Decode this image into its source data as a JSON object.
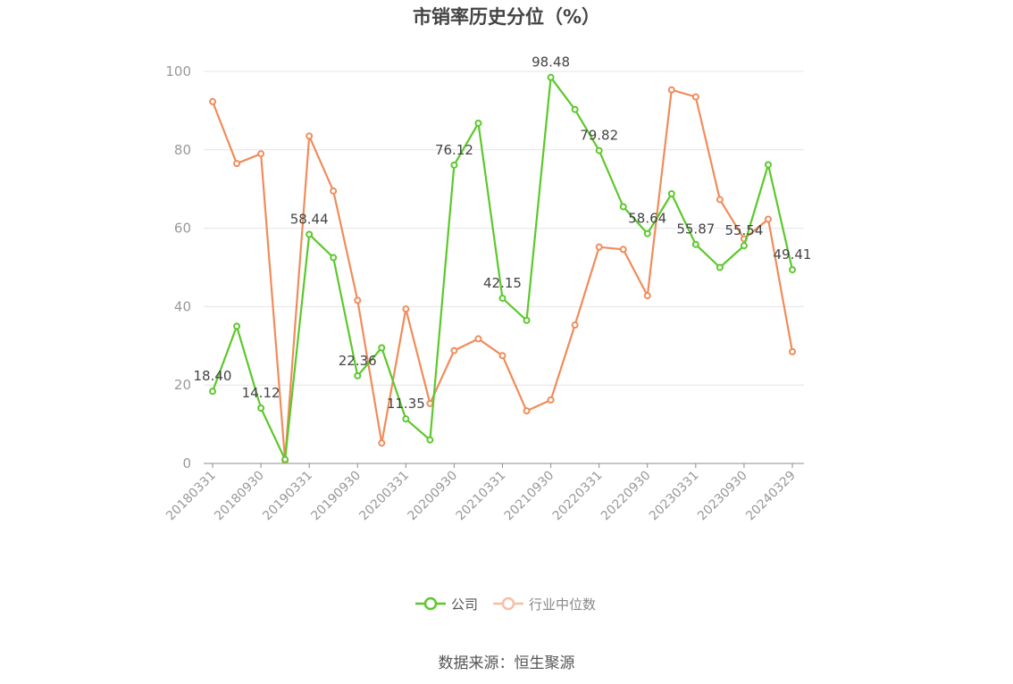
{
  "chart_data": {
    "type": "line",
    "title": "市销率历史分位（%）",
    "xlabel": "",
    "ylabel": "",
    "ylim": [
      0,
      100
    ],
    "yticks": [
      0,
      20,
      40,
      60,
      80,
      100
    ],
    "grid": true,
    "legend_position": "bottom",
    "categories": [
      "20180331",
      "20180630",
      "20180930",
      "20181231",
      "20190331",
      "20190630",
      "20190930",
      "20191231",
      "20200331",
      "20200630",
      "20200930",
      "20201231",
      "20210331",
      "20210630",
      "20210930",
      "20211231",
      "20220331",
      "20220630",
      "20220930",
      "20221231",
      "20230331",
      "20230630",
      "20230930",
      "20231231",
      "20240329"
    ],
    "xtick_labels": [
      "20180331",
      "20180930",
      "20190331",
      "20190930",
      "20200331",
      "20200930",
      "20210331",
      "20210930",
      "20220331",
      "20220930",
      "20230331",
      "20230930",
      "20240329"
    ],
    "series": [
      {
        "name": "公司",
        "color": "#5cc82b",
        "values": [
          18.4,
          35.0,
          14.12,
          1.0,
          58.44,
          52.5,
          22.36,
          29.5,
          11.35,
          6.0,
          76.12,
          86.8,
          42.15,
          36.5,
          98.48,
          90.3,
          79.82,
          65.5,
          58.64,
          68.8,
          55.87,
          50.0,
          55.54,
          76.2,
          49.41
        ],
        "labels": [
          "18.40",
          "",
          "14.12",
          "",
          "58.44",
          "",
          "22.36",
          "",
          "11.35",
          "",
          "76.12",
          "",
          "42.15",
          "",
          "98.48",
          "",
          "79.82",
          "",
          "58.64",
          "",
          "55.87",
          "",
          "55.54",
          "",
          "49.41"
        ]
      },
      {
        "name": "行业中位数",
        "color": "#f08c5a",
        "values": [
          92.3,
          76.5,
          79.0,
          0.8,
          83.5,
          69.5,
          41.6,
          5.2,
          39.4,
          15.3,
          28.8,
          31.8,
          27.5,
          13.4,
          16.2,
          35.3,
          55.2,
          54.6,
          42.8,
          95.3,
          93.5,
          67.3,
          57.3,
          62.3,
          28.5
        ]
      }
    ]
  },
  "footer": {
    "source": "数据来源：恒生聚源"
  }
}
